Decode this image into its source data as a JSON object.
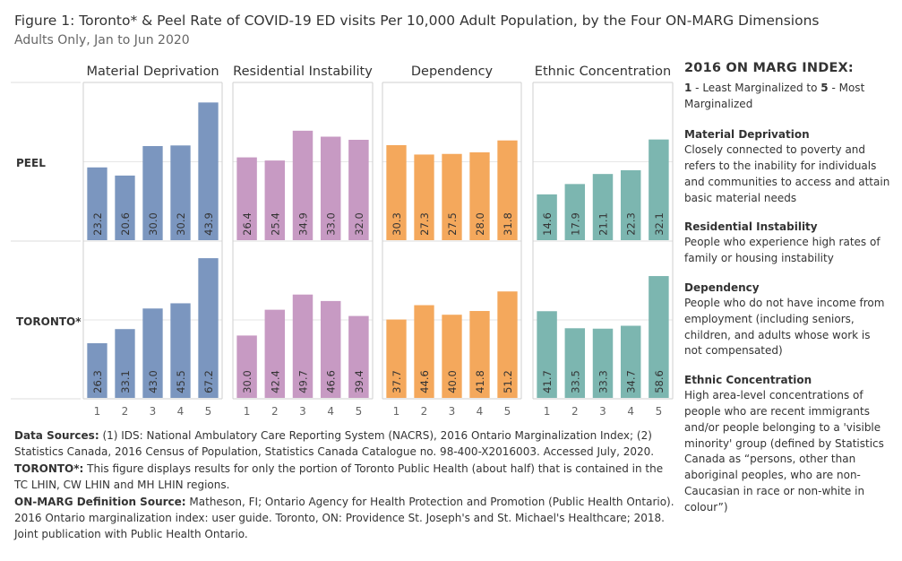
{
  "title": "Figure 1: Toronto* & Peel Rate of COVID-19 ED visits Per 10,000 Adult Population, by the Four ON-MARG Dimensions",
  "subtitle": "Adults Only, Jan to Jun 2020",
  "colors": {
    "Material Deprivation": "#7b96bf",
    "Residential Instability": "#c79ac3",
    "Dependency": "#f4a85c",
    "Ethnic Concentration": "#7cb6b0",
    "gridline": "#e6e6e6",
    "panel_border": "#cfcfcf"
  },
  "chart_data": {
    "type": "bar",
    "categories": [
      "1",
      "2",
      "3",
      "4",
      "5"
    ],
    "panels": [
      "Material Deprivation",
      "Residential Instability",
      "Dependency",
      "Ethnic Concentration"
    ],
    "rows": [
      {
        "label": "PEEL",
        "series": [
          {
            "panel": "Material Deprivation",
            "values": [
              23.2,
              20.6,
              30.0,
              30.2,
              43.9
            ]
          },
          {
            "panel": "Residential Instability",
            "values": [
              26.4,
              25.4,
              34.9,
              33.0,
              32.0
            ]
          },
          {
            "panel": "Dependency",
            "values": [
              30.3,
              27.3,
              27.5,
              28.0,
              31.8
            ]
          },
          {
            "panel": "Ethnic Concentration",
            "values": [
              14.6,
              17.9,
              21.1,
              22.3,
              32.1
            ]
          }
        ]
      },
      {
        "label": "TORONTO*",
        "series": [
          {
            "panel": "Material Deprivation",
            "values": [
              26.3,
              33.1,
              43.0,
              45.5,
              67.2
            ]
          },
          {
            "panel": "Residential Instability",
            "values": [
              30.0,
              42.4,
              49.7,
              46.6,
              39.4
            ]
          },
          {
            "panel": "Dependency",
            "values": [
              37.7,
              44.6,
              40.0,
              41.8,
              51.2
            ]
          },
          {
            "panel": "Ethnic Concentration",
            "values": [
              41.7,
              33.5,
              33.3,
              34.7,
              58.6
            ]
          }
        ]
      }
    ],
    "ylim_rows": [
      [
        0,
        50
      ],
      [
        0,
        75
      ]
    ],
    "grid": true,
    "value_labels": "rotated-inside-bar"
  },
  "sources": {
    "data_label": "Data Sources:",
    "data_text": " (1) IDS: National Ambulatory Care Reporting System (NACRS), 2016 Ontario Marginalization Index; (2) Statistics Canada, 2016 Census of Population, Statistics Canada Catalogue no. 98-400-X2016003. Accessed July, 2020.",
    "toronto_label": "TORONTO*:",
    "toronto_text": " This figure displays results for only the portion of Toronto Public Health (about half) that is contained in the TC LHIN, CW LHIN and MH LHIN regions.",
    "onmarg_label": "ON-MARG Definition Source:",
    "onmarg_text": " Matheson, FI; Ontario Agency for Health Protection and Promotion (Public Health Ontario). 2016 Ontario marginalization index: user guide. Toronto, ON: Providence St. Joseph's and St. Michael's Healthcare; 2018. Joint publication with Public Health Ontario."
  },
  "legend": {
    "title": "2016 ON MARG INDEX:",
    "scale_low_num": "1",
    "scale_low_text": " - Least Marginalized to ",
    "scale_high_num": "5",
    "scale_high_text": " - Most Marginalized",
    "definitions": [
      {
        "title": "Material Deprivation",
        "text": "Closely connected to poverty and refers to the inability for individuals and communities to access and attain basic material needs"
      },
      {
        "title": "Residential Instability",
        "text": "People who experience high rates of family or housing instability"
      },
      {
        "title": "Dependency",
        "text": "People who do not have income from employment (including seniors, children, and adults whose work is not compensated)"
      },
      {
        "title": "Ethnic Concentration",
        "text": "High area-level concentrations of people who are recent immigrants and/or people belonging to a 'visible minority' group (defined by Statistics Canada as “persons, other than aboriginal peoples, who are non-Caucasian in race or non-white in colour”)"
      }
    ]
  }
}
